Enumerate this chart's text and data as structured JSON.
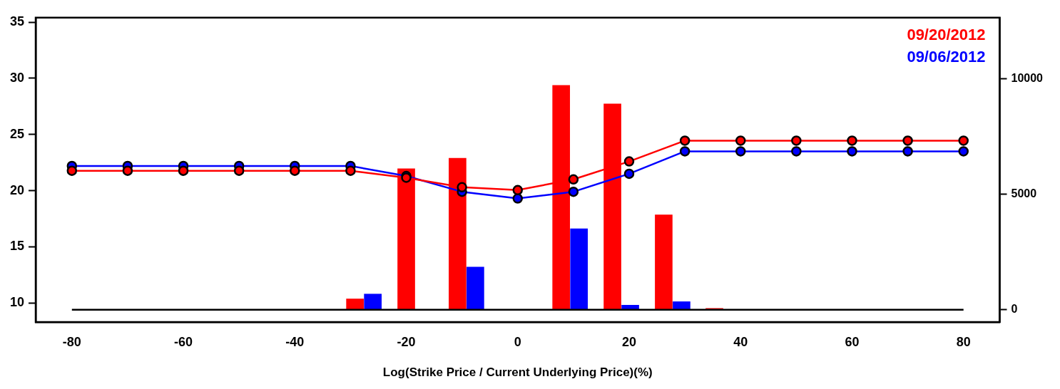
{
  "chart_data": {
    "type": "line",
    "xlabel": "Log(Strike Price / Current Underlying Price)(%)",
    "xlim": [
      -86.5,
      86.5
    ],
    "xticks": [
      -80,
      -60,
      -40,
      -20,
      0,
      20,
      40,
      60,
      80
    ],
    "ylim": [
      8.3,
      35.4
    ],
    "yticks": [
      10,
      15,
      20,
      25,
      30,
      35
    ],
    "y2lim": [
      -530,
      12630
    ],
    "y2ticks": [
      0,
      5000,
      10000
    ],
    "grid": false,
    "legend": "top right",
    "line_style": "solid",
    "series": [
      {
        "type": "bar",
        "axis": "y2",
        "color": "#ff0000",
        "x": [
          -29.2,
          -20,
          -10.8,
          7.8,
          17,
          26.2,
          35.3
        ],
        "values": [
          470,
          6100,
          6550,
          9700,
          8900,
          4100,
          60
        ]
      },
      {
        "type": "bar",
        "axis": "y2",
        "color": "#0000ff",
        "x": [
          -26,
          -7.6,
          11,
          20.2,
          29.4
        ],
        "values": [
          680,
          1850,
          3500,
          200,
          350
        ]
      },
      {
        "axis": "y2",
        "color": "#000000",
        "marker": "none",
        "x": [
          -80,
          80
        ],
        "values": [
          0,
          0
        ]
      },
      {
        "name": "09/20/2012",
        "color": "#ff0000",
        "marker": "circle",
        "x": [
          -80,
          -70,
          -60,
          -50,
          -40,
          -30,
          -20,
          -10,
          0,
          10,
          20,
          30,
          40,
          50,
          60,
          70,
          80
        ],
        "values": [
          21.77,
          21.77,
          21.77,
          21.77,
          21.77,
          21.77,
          21.15,
          20.3,
          20.05,
          21.0,
          22.6,
          24.45,
          24.45,
          24.45,
          24.45,
          24.45,
          24.45
        ]
      },
      {
        "name": "09/06/2012",
        "color": "#0000ff",
        "marker": "circle",
        "x": [
          -80,
          -70,
          -60,
          -50,
          -40,
          -30,
          -20,
          -10,
          0,
          10,
          20,
          30,
          40,
          50,
          60,
          70,
          80
        ],
        "values": [
          22.2,
          22.2,
          22.2,
          22.2,
          22.2,
          22.2,
          21.3,
          19.9,
          19.3,
          19.9,
          21.5,
          23.5,
          23.5,
          23.5,
          23.5,
          23.5,
          23.5
        ]
      }
    ]
  }
}
